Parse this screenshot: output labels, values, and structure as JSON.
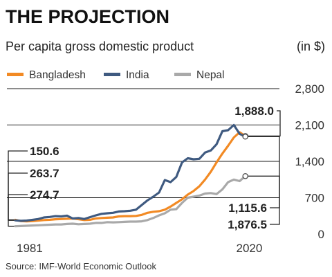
{
  "chart_data": {
    "type": "line",
    "title": "THE PROJECTION",
    "subtitle": "Per capita gross domestic product",
    "unit_label": "(in $)",
    "source": "Source: IMF-World Economic Outlook",
    "x_tick_labels": [
      "1981",
      "2020"
    ],
    "y_ticks": [
      0,
      700,
      1400,
      2100,
      2800
    ],
    "y_tick_labels": [
      "0",
      "700",
      "1,400",
      "2,100",
      "2,800"
    ],
    "xlim": [
      1981,
      2025
    ],
    "ylim": [
      0,
      2800
    ],
    "grid": "horizontal",
    "legend_position": "top",
    "colors": {
      "Bangladesh": "#f28a24",
      "India": "#3f5a80",
      "Nepal": "#a9a9a9",
      "grid": "#1a1a1a"
    },
    "start_annotations": [
      {
        "series": "Nepal",
        "label": "150.6"
      },
      {
        "series": "India",
        "label": "263.7"
      },
      {
        "series": "Bangladesh",
        "label": "274.7"
      }
    ],
    "end_annotations": [
      {
        "series": "Bangladesh",
        "label": "1,888.0"
      },
      {
        "series": "Nepal",
        "label": "1,115.6"
      },
      {
        "series": "India",
        "label": "1,876.5"
      }
    ],
    "x": [
      1981,
      1982,
      1983,
      1984,
      1985,
      1986,
      1987,
      1988,
      1989,
      1990,
      1991,
      1992,
      1993,
      1994,
      1995,
      1996,
      1997,
      1998,
      1999,
      2000,
      2001,
      2002,
      2003,
      2004,
      2005,
      2006,
      2007,
      2008,
      2009,
      2010,
      2011,
      2012,
      2013,
      2014,
      2015,
      2016,
      2017,
      2018,
      2019,
      2020,
      2021
    ],
    "series": [
      {
        "name": "Bangladesh",
        "values": [
          275,
          250,
          245,
          250,
          260,
          270,
          275,
          285,
          290,
          295,
          300,
          285,
          270,
          275,
          300,
          310,
          315,
          320,
          340,
          345,
          345,
          350,
          370,
          410,
          430,
          440,
          470,
          530,
          600,
          670,
          760,
          830,
          920,
          1050,
          1200,
          1380,
          1550,
          1700,
          1860,
          1960,
          1888
        ]
      },
      {
        "name": "India",
        "values": [
          264,
          255,
          260,
          275,
          290,
          320,
          330,
          345,
          340,
          355,
          300,
          310,
          290,
          325,
          360,
          390,
          400,
          410,
          435,
          440,
          450,
          470,
          560,
          650,
          720,
          800,
          1040,
          1000,
          1100,
          1380,
          1460,
          1440,
          1450,
          1570,
          1610,
          1730,
          1980,
          2000,
          2100,
          1930,
          1876.5
        ]
      },
      {
        "name": "Nepal",
        "values": [
          151,
          155,
          160,
          165,
          170,
          175,
          180,
          185,
          185,
          195,
          200,
          190,
          195,
          200,
          215,
          215,
          230,
          225,
          230,
          235,
          240,
          240,
          245,
          270,
          310,
          360,
          400,
          470,
          480,
          600,
          700,
          720,
          740,
          780,
          790,
          770,
          860,
          1000,
          1050,
          1020,
          1115.6
        ]
      }
    ]
  }
}
